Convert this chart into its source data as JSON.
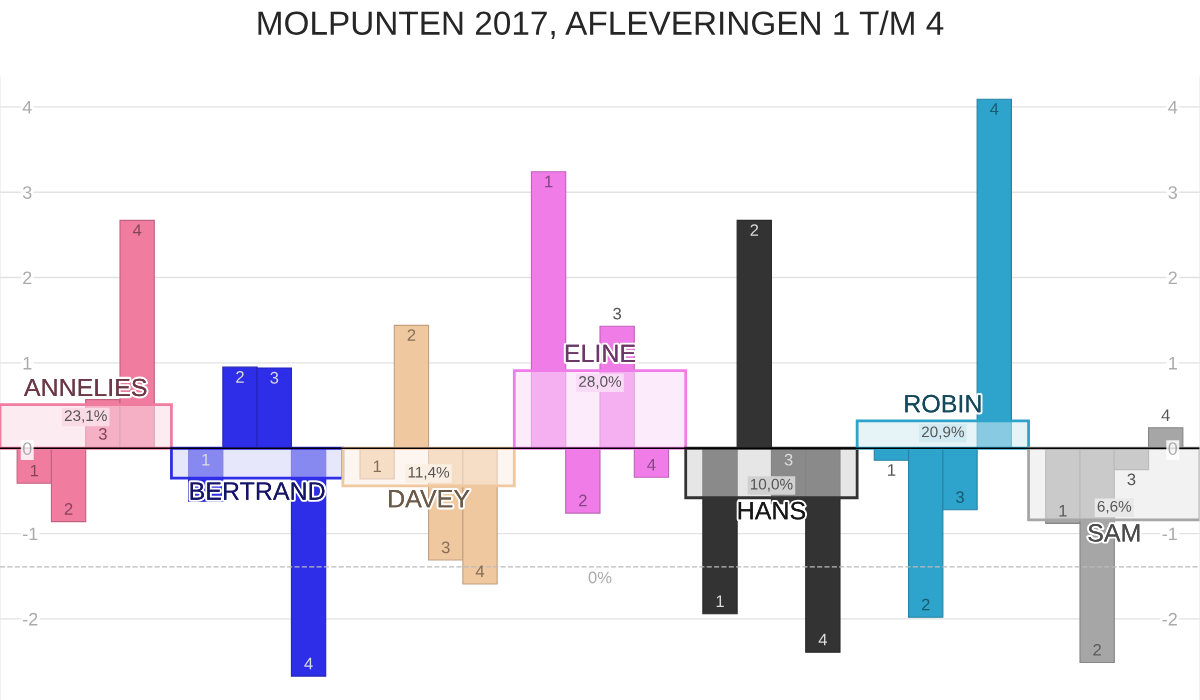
{
  "chart_data": {
    "type": "bar",
    "title": "MOLPUNTEN 2017, AFLEVERINGEN 1 T/M 4",
    "categories": [
      "ANNELIES",
      "BERTRAND",
      "DAVEY",
      "ELINE",
      "HANS",
      "ROBIN",
      "SAM"
    ],
    "series": [
      {
        "name": "1",
        "colors": [
          "#f07ca0",
          "#2e2ee8",
          "#f0c8a0",
          "#f07ce8",
          "#333333",
          "#2ea3cc",
          "#a6a6a6"
        ],
        "values": [
          -0.41,
          -0.62,
          -0.36,
          3.24,
          -1.94,
          -0.14,
          -0.88
        ]
      },
      {
        "name": "2",
        "colors": [
          "#f07ca0",
          "#2e2ee8",
          "#f0c8a0",
          "#f07ce8",
          "#333333",
          "#2ea3cc",
          "#a6a6a6"
        ],
        "values": [
          -0.86,
          0.95,
          1.44,
          -0.76,
          2.67,
          -1.98,
          -2.51
        ]
      },
      {
        "name": "3",
        "colors": [
          "#f07ca0",
          "#2e2ee8",
          "#f0c8a0",
          "#f07ce8",
          "#333333",
          "#2ea3cc",
          "#a6a6a6"
        ],
        "values": [
          0.57,
          0.94,
          -1.31,
          1.43,
          -0.65,
          -0.72,
          -0.25
        ]
      },
      {
        "name": "4",
        "colors": [
          "#f07ca0",
          "#2e2ee8",
          "#f0c8a0",
          "#f07ce8",
          "#333333",
          "#2ea3cc",
          "#a6a6a6"
        ],
        "values": [
          2.67,
          -2.67,
          -1.59,
          -0.34,
          -2.39,
          4.09,
          0.24
        ]
      },
      {
        "colors": [
          "#fadbe5",
          "#d4d4f8",
          "#fbefe3",
          "#f9dbf8",
          "#d1d1d1",
          "#d2ebf3",
          "#e8e8e8"
        ],
        "values": [
          0.51,
          -0.35,
          -0.44,
          0.91,
          -0.58,
          0.32,
          -0.84
        ]
      }
    ],
    "annotations": [
      {
        "text": "23,1%",
        "x": "ANNELIES",
        "y": 0.51
      },
      {
        "text": "11,4%",
        "x": "DAVEY",
        "y": -0.44
      },
      {
        "text": "28,0%",
        "x": "ELINE",
        "y": 0.91
      },
      {
        "text": "10,0%",
        "x": "HANS",
        "y": -0.58
      },
      {
        "text": "20,9%",
        "x": "ROBIN",
        "y": 0.32
      },
      {
        "text": "6,6%",
        "x": "SAM",
        "y": -0.84
      },
      {
        "text": "0%",
        "x": "ELINE",
        "y": -1.39
      }
    ],
    "ylim": [
      -2.95,
      4.35
    ],
    "yticks": [
      -2,
      -1,
      0,
      1,
      2,
      3,
      4
    ],
    "y2lim": [
      -2.95,
      4.35
    ],
    "y2ticks": [
      -2,
      -1,
      0,
      1,
      2,
      3,
      4
    ],
    "ref_lines": [
      {
        "axis": "y",
        "value": 0,
        "color": "#000000"
      },
      {
        "axis": "y",
        "value": -1.39,
        "line_style": "dashed",
        "color": "#bbbbbb"
      }
    ],
    "grid": "y",
    "legend": false
  }
}
